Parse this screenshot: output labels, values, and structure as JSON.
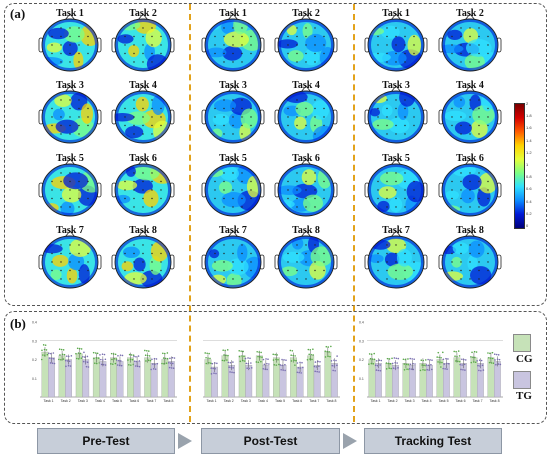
{
  "panel_a_label": "(a)",
  "panel_b_label": "(b)",
  "sections": [
    {
      "tasks": [
        "Task 1",
        "Task 2",
        "Task 3",
        "Task 4",
        "Task 5",
        "Task 6",
        "Task 7",
        "Task 8"
      ]
    },
    {
      "tasks": [
        "Task 1",
        "Task 2",
        "Task 3",
        "Task 4",
        "Task 5",
        "Task 6",
        "Task 7",
        "Task 8"
      ]
    },
    {
      "tasks": [
        "Task 1",
        "Task 2",
        "Task 3",
        "Task 4",
        "Task 5",
        "Task 6",
        "Task 7",
        "Task 8"
      ]
    }
  ],
  "colorbar": {
    "ticks": [
      "2",
      "1.8",
      "1.6",
      "1.4",
      "1.2",
      "1",
      "0.8",
      "0.6",
      "0.4",
      "0.2",
      "0"
    ]
  },
  "legend": {
    "cg_label": "CG",
    "tg_label": "TG",
    "cg_color": "#c6e2b8",
    "tg_color": "#c9c5e0"
  },
  "stages": [
    "Pre-Test",
    "Post-Test",
    "Tracking Test"
  ],
  "chart_data": [
    {
      "type": "bar",
      "categories": [
        "Task 1",
        "Task 2",
        "Task 3",
        "Task 4",
        "Task 5",
        "Task 6",
        "Task 7",
        "Task 8"
      ],
      "series": [
        {
          "name": "CG",
          "values": [
            0.24,
            0.22,
            0.23,
            0.21,
            0.21,
            0.21,
            0.21,
            0.2
          ]
        },
        {
          "name": "TG",
          "values": [
            0.21,
            0.2,
            0.2,
            0.19,
            0.19,
            0.19,
            0.18,
            0.19
          ]
        }
      ],
      "ylim": [
        0,
        0.4
      ],
      "yticks": [
        "0.4",
        "0.3",
        "0.2",
        "0.1"
      ]
    },
    {
      "type": "bar",
      "categories": [
        "Task 1",
        "Task 2",
        "Task 3",
        "Task 4",
        "Task 5",
        "Task 6",
        "Task 7",
        "Task 8"
      ],
      "series": [
        {
          "name": "CG",
          "values": [
            0.2,
            0.22,
            0.22,
            0.22,
            0.21,
            0.21,
            0.22,
            0.24
          ]
        },
        {
          "name": "TG",
          "values": [
            0.16,
            0.17,
            0.17,
            0.17,
            0.17,
            0.16,
            0.17,
            0.18
          ]
        }
      ],
      "ylim": [
        0,
        0.4
      ],
      "yticks": []
    },
    {
      "type": "bar",
      "categories": [
        "Task 1",
        "Task 2",
        "Task 3",
        "Task 4",
        "Task 5",
        "Task 6",
        "Task 7",
        "Task 8"
      ],
      "series": [
        {
          "name": "CG",
          "values": [
            0.2,
            0.18,
            0.18,
            0.18,
            0.2,
            0.21,
            0.21,
            0.21
          ]
        },
        {
          "name": "TG",
          "values": [
            0.18,
            0.17,
            0.17,
            0.17,
            0.18,
            0.18,
            0.18,
            0.19
          ]
        }
      ],
      "ylim": [
        0,
        0.4
      ],
      "yticks": [
        "0.4",
        "0.3",
        "0.2",
        "0.1"
      ]
    }
  ]
}
